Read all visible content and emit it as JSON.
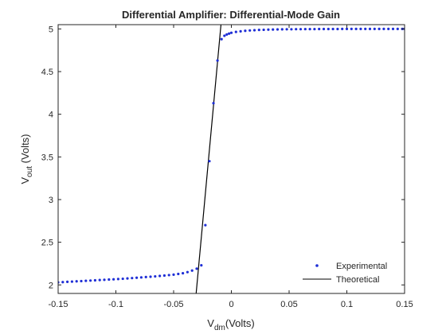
{
  "chart_data": {
    "type": "scatter",
    "title": "Differential Amplifier: Differential-Mode Gain",
    "xlabel": {
      "main": "V",
      "sub": "dm",
      "unit": "(Volts)"
    },
    "ylabel": {
      "main": "V",
      "sub": "out",
      "unit": " (Volts)"
    },
    "xlim": [
      -0.15,
      0.15
    ],
    "ylim": [
      1.9,
      5.05
    ],
    "xticks": [
      -0.15,
      -0.1,
      -0.05,
      0,
      0.05,
      0.1,
      0.15
    ],
    "xtick_labels": [
      "-0.15",
      "-0.1",
      "-0.05",
      "0",
      "0.05",
      "0.1",
      "0.15"
    ],
    "yticks": [
      2,
      2.5,
      3,
      3.5,
      4,
      4.5,
      5
    ],
    "ytick_labels": [
      "2",
      "2.5",
      "3",
      "3.5",
      "4",
      "4.5",
      "5"
    ],
    "grid": false,
    "legend_position": "bottom-right",
    "series": [
      {
        "name": "Experimental",
        "style": "markers",
        "color": "#1f2fd6",
        "x": [
          -0.15,
          -0.146,
          -0.142,
          -0.138,
          -0.134,
          -0.13,
          -0.126,
          -0.122,
          -0.118,
          -0.114,
          -0.11,
          -0.106,
          -0.102,
          -0.098,
          -0.094,
          -0.09,
          -0.086,
          -0.082,
          -0.078,
          -0.074,
          -0.07,
          -0.066,
          -0.062,
          -0.058,
          -0.054,
          -0.05,
          -0.046,
          -0.042,
          -0.038,
          -0.034,
          -0.03,
          -0.026,
          -0.0225,
          -0.019,
          -0.0155,
          -0.012,
          -0.0085,
          -0.006,
          -0.004,
          -0.002,
          0,
          0.004,
          0.008,
          0.012,
          0.016,
          0.02,
          0.024,
          0.028,
          0.032,
          0.036,
          0.04,
          0.044,
          0.048,
          0.052,
          0.056,
          0.06,
          0.064,
          0.068,
          0.072,
          0.076,
          0.08,
          0.084,
          0.088,
          0.092,
          0.096,
          0.1,
          0.104,
          0.108,
          0.112,
          0.116,
          0.12,
          0.124,
          0.128,
          0.132,
          0.136,
          0.14,
          0.144,
          0.148,
          0.15
        ],
        "y": [
          2.03,
          2.033,
          2.036,
          2.039,
          2.042,
          2.045,
          2.048,
          2.051,
          2.054,
          2.057,
          2.06,
          2.063,
          2.066,
          2.069,
          2.072,
          2.076,
          2.08,
          2.084,
          2.088,
          2.092,
          2.096,
          2.1,
          2.105,
          2.11,
          2.115,
          2.12,
          2.128,
          2.137,
          2.15,
          2.168,
          2.19,
          2.23,
          2.7,
          3.45,
          4.13,
          4.63,
          4.88,
          4.92,
          4.935,
          4.945,
          4.955,
          4.965,
          4.972,
          4.978,
          4.982,
          4.985,
          4.988,
          4.99,
          4.992,
          4.993,
          4.994,
          4.995,
          4.996,
          4.996,
          4.997,
          4.997,
          4.998,
          4.998,
          4.998,
          4.999,
          4.999,
          4.999,
          4.999,
          4.999,
          5.0,
          5.0,
          5.0,
          5.0,
          5.0,
          5.0,
          5.0,
          5.0,
          5.0,
          5.0,
          5.0,
          5.0,
          5.0,
          5.0,
          5.0
        ]
      },
      {
        "name": "Theoretical",
        "style": "line",
        "color": "#000000",
        "x": [
          -0.0305,
          -0.009
        ],
        "y": [
          1.9,
          5.05
        ]
      }
    ]
  }
}
